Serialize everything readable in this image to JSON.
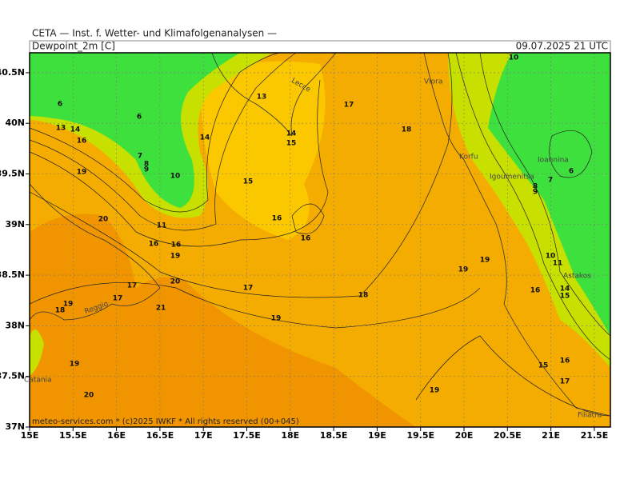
{
  "header": {
    "title": "CETA — Inst. f. Wetter- und Klimafolgenanalysen —",
    "subtitle": "Dewpoint_2m [C]",
    "date": "09.07.2025 21 UTC"
  },
  "footer": "meteo-services.com * (c)2025 IWKF * All rights reserved (00+045)",
  "x_labels": [
    "15E",
    "15.5E",
    "16E",
    "16.5E",
    "17E",
    "17.5E",
    "18E",
    "18.5E",
    "19E",
    "19.5E",
    "20E",
    "20.5E",
    "21E",
    "21.5E"
  ],
  "y_labels": [
    "37N",
    "37.5N",
    "38N",
    "38.5N",
    "39N",
    "39.5N",
    "40N",
    "40.5N"
  ],
  "places": [
    "Lecce",
    "Vlora",
    "Korfu",
    "Igoumenitsa",
    "Ioannina",
    "Astakos",
    "Reggio",
    "Catania",
    "Filiatra"
  ],
  "contour_labels": [
    "6",
    "6",
    "13",
    "14",
    "16",
    "7",
    "8",
    "9",
    "10",
    "19",
    "14",
    "13",
    "14",
    "15",
    "17",
    "18",
    "15",
    "16",
    "16",
    "20",
    "11",
    "16",
    "16",
    "19",
    "20",
    "17",
    "17",
    "18",
    "19",
    "21",
    "17",
    "18",
    "19",
    "19",
    "20",
    "19",
    "19",
    "19",
    "10",
    "7",
    "8",
    "9",
    "6",
    "10",
    "11",
    "14",
    "15",
    "16",
    "15",
    "16",
    "17"
  ]
}
